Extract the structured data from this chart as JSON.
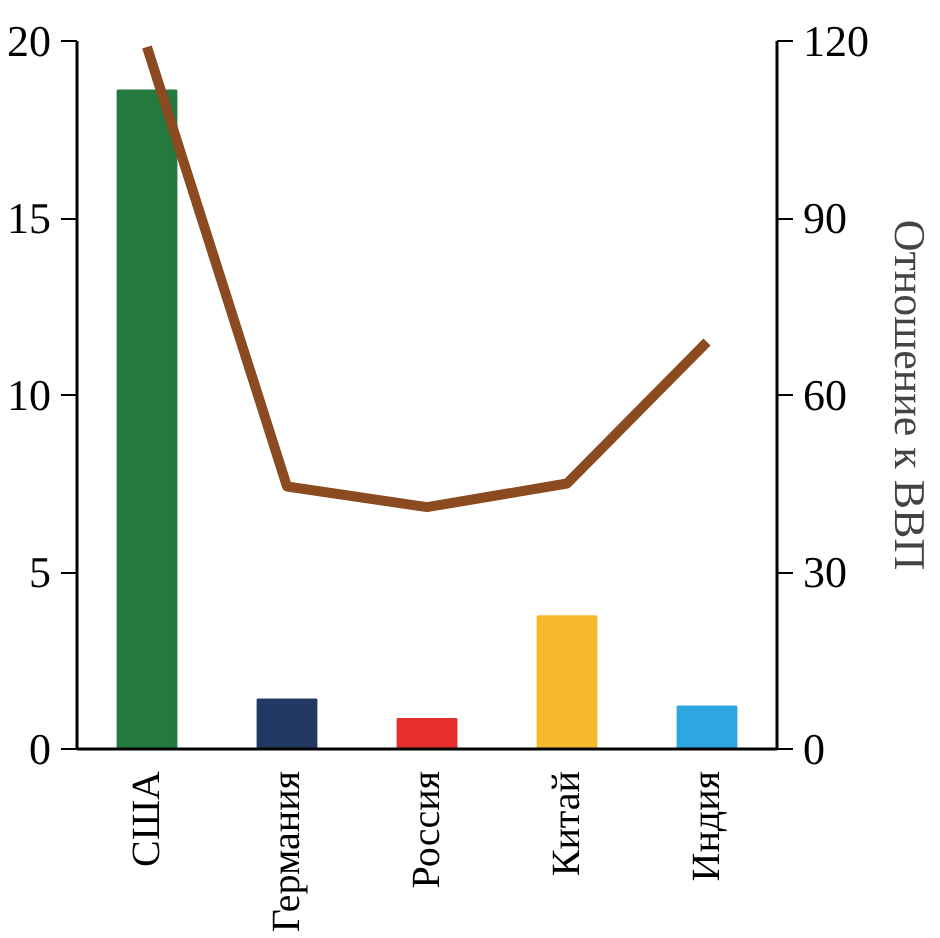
{
  "chart_data": {
    "type": "bar",
    "y2label": "Отношение к ВВП",
    "categories": [
      "США",
      "Германия",
      "Россия",
      "Китай",
      "Индия"
    ],
    "series": [
      {
        "colors": [
          "#23793e",
          "#223a63",
          "#e62e2d",
          "#f6b92b",
          "#2ea6df"
        ],
        "values": [
          18.6,
          1.4,
          0.85,
          3.75,
          1.2
        ]
      },
      {
        "type": "line",
        "axis": "y2",
        "color": "#8b4a1f",
        "values": [
          119,
          44.5,
          41,
          45,
          69
        ]
      }
    ],
    "ylim": [
      0,
      20
    ],
    "yticks": [
      0,
      5,
      10,
      15,
      20
    ],
    "y2lim": [
      0,
      120
    ],
    "y2ticks": [
      0,
      30,
      60,
      90,
      120
    ],
    "grid": false
  }
}
